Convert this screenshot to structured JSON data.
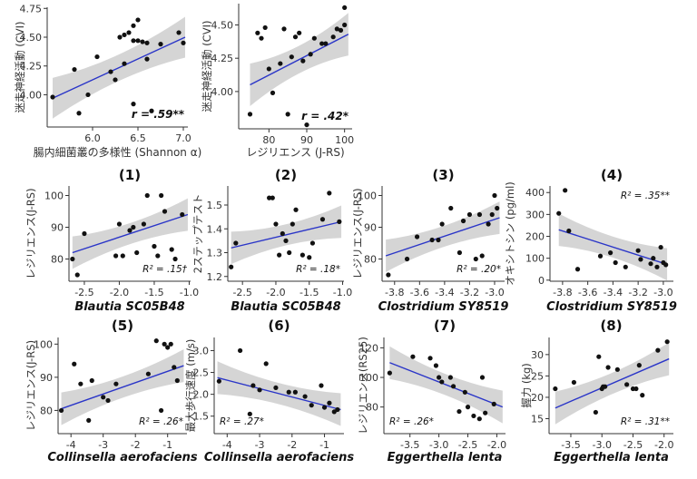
{
  "chart_data": [
    {
      "id": "A",
      "type": "scatter",
      "title": "",
      "xlabel": "腸内細菌叢の多様性 (Shannon α)",
      "xlabel_style": "plain",
      "ylabel": "迷走神経活動 (CVI)",
      "xlim": [
        5.5,
        7.05
      ],
      "ylim": [
        3.72,
        4.76
      ],
      "xticks": [
        6.0,
        6.5,
        7.0
      ],
      "xtick_labels": [
        "6.0",
        "6.5",
        "7.0"
      ],
      "yticks": [
        4.0,
        4.25,
        4.5,
        4.75
      ],
      "ytick_labels": [
        "4.00",
        "4.25",
        "4.50",
        "4.75"
      ],
      "stat": "r = .59**",
      "stat_pos": "bottom-right",
      "grid": false,
      "fit": {
        "x1": 5.56,
        "y1": 3.97,
        "x2": 7.02,
        "y2": 4.5
      },
      "x": [
        5.56,
        5.8,
        5.85,
        5.95,
        6.05,
        6.2,
        6.25,
        6.3,
        6.35,
        6.35,
        6.4,
        6.45,
        6.45,
        6.5,
        6.5,
        6.55,
        6.6,
        6.6,
        6.65,
        6.75,
        6.95,
        7.0,
        6.45
      ],
      "y": [
        3.98,
        4.22,
        3.84,
        4.0,
        4.33,
        4.2,
        4.13,
        4.5,
        4.52,
        4.27,
        4.54,
        4.47,
        4.6,
        4.47,
        4.65,
        4.46,
        4.45,
        4.31,
        3.86,
        4.44,
        4.54,
        4.45,
        3.92
      ]
    },
    {
      "id": "B",
      "type": "scatter",
      "title": "",
      "xlabel": "レジリエンス (J-RS)",
      "xlabel_style": "plain",
      "ylabel": "迷走神経活動 (CVI)",
      "xlim": [
        72,
        102
      ],
      "ylim": [
        3.72,
        4.66
      ],
      "xticks": [
        80,
        90,
        100
      ],
      "xtick_labels": [
        "80",
        "90",
        "100"
      ],
      "yticks": [
        4.0,
        4.25,
        4.5
      ],
      "ytick_labels": [
        "4.00",
        "4.25",
        "4.50"
      ],
      "stat": "r = .42*",
      "stat_pos": "bottom-right",
      "grid": false,
      "fit": {
        "x1": 75,
        "y1": 4.05,
        "x2": 101,
        "y2": 4.43
      },
      "x": [
        75,
        77,
        78,
        79,
        80,
        81,
        83,
        84,
        85,
        86,
        87,
        88,
        89,
        90,
        91,
        92,
        94,
        95,
        97,
        98,
        99,
        100,
        100
      ],
      "y": [
        3.83,
        4.44,
        4.4,
        4.48,
        4.17,
        3.99,
        4.21,
        4.47,
        3.83,
        4.26,
        4.41,
        4.44,
        4.23,
        3.75,
        4.28,
        4.4,
        4.36,
        4.36,
        4.41,
        4.47,
        4.46,
        4.5,
        4.63
      ]
    },
    {
      "id": "1",
      "type": "scatter",
      "title": "(1)",
      "xlabel": "Blautia SC05B48",
      "xlabel_style": "italic",
      "ylabel": "レジリエンス(J-RS)",
      "xlim": [
        -2.72,
        -0.98
      ],
      "ylim": [
        73,
        103
      ],
      "xticks": [
        -2.5,
        -2.0,
        -1.5,
        -1.0
      ],
      "xtick_labels": [
        "-2.5",
        "-2.0",
        "-1.5",
        "-1.0"
      ],
      "yticks": [
        80,
        90,
        100
      ],
      "ytick_labels": [
        "80",
        "90",
        "100"
      ],
      "stat": "R² = .15†",
      "stat_pos": "bottom-right",
      "grid": false,
      "fit": {
        "x1": -2.67,
        "y1": 82,
        "x2": -1.02,
        "y2": 94
      },
      "x": [
        -2.67,
        -2.6,
        -2.5,
        -2.05,
        -2.0,
        -1.95,
        -1.85,
        -1.8,
        -1.75,
        -1.65,
        -1.6,
        -1.5,
        -1.45,
        -1.4,
        -1.35,
        -1.25,
        -1.2,
        -1.1
      ],
      "y": [
        80,
        75,
        88,
        81,
        91,
        81,
        89,
        90,
        82,
        91,
        100,
        84,
        81,
        100,
        95,
        83,
        80,
        94
      ]
    },
    {
      "id": "2",
      "type": "scatter",
      "title": "(2)",
      "xlabel": "Blautia SC05B48",
      "xlabel_style": "italic",
      "ylabel": "2ステップテスト",
      "xlim": [
        -2.72,
        -0.98
      ],
      "ylim": [
        1.18,
        1.58
      ],
      "xticks": [
        -2.5,
        -2.0,
        -1.5,
        -1.0
      ],
      "xtick_labels": [
        "-2.5",
        "-2.0",
        "-1.5",
        "-1.0"
      ],
      "yticks": [
        1.2,
        1.3,
        1.4,
        1.5
      ],
      "ytick_labels": [
        "1.2",
        "1.3",
        "1.4",
        "1.5"
      ],
      "stat": "R² = .18*",
      "stat_pos": "bottom-right",
      "grid": false,
      "fit": {
        "x1": -2.67,
        "y1": 1.32,
        "x2": -1.02,
        "y2": 1.43
      },
      "x": [
        -2.67,
        -2.6,
        -2.1,
        -2.05,
        -2.0,
        -1.95,
        -1.9,
        -1.85,
        -1.8,
        -1.75,
        -1.7,
        -1.6,
        -1.5,
        -1.45,
        -1.3,
        -1.2,
        -1.05
      ],
      "y": [
        1.24,
        1.34,
        1.53,
        1.53,
        1.42,
        1.29,
        1.38,
        1.35,
        1.3,
        1.42,
        1.48,
        1.29,
        1.28,
        1.34,
        1.44,
        1.55,
        1.43
      ]
    },
    {
      "id": "3",
      "type": "scatter",
      "title": "(3)",
      "xlabel": "Clostridium SY8519",
      "xlabel_style": "italic",
      "ylabel": "レジリエンス(J-RS)",
      "xlim": [
        -3.9,
        -2.92
      ],
      "ylim": [
        73,
        103
      ],
      "xticks": [
        -3.8,
        -3.6,
        -3.4,
        -3.2,
        -3.0
      ],
      "xtick_labels": [
        "-3.8",
        "-3.6",
        "-3.4",
        "-3.2",
        "-3.0"
      ],
      "yticks": [
        80,
        90,
        100
      ],
      "ytick_labels": [
        "80",
        "90",
        "100"
      ],
      "stat": "R² = .20*",
      "stat_pos": "bottom-right",
      "grid": false,
      "fit": {
        "x1": -3.87,
        "y1": 81,
        "x2": -2.96,
        "y2": 93
      },
      "x": [
        -3.85,
        -3.7,
        -3.62,
        -3.5,
        -3.45,
        -3.42,
        -3.35,
        -3.28,
        -3.25,
        -3.2,
        -3.15,
        -3.12,
        -3.1,
        -3.05,
        -3.02,
        -3.0,
        -2.98
      ],
      "y": [
        75,
        80,
        87,
        86,
        86,
        91,
        96,
        82,
        92,
        94,
        80,
        94,
        81,
        91,
        94,
        100,
        96
      ]
    },
    {
      "id": "4",
      "type": "scatter",
      "title": "(4)",
      "xlabel": "Clostridium SY8519",
      "xlabel_style": "italic",
      "ylabel": "オキシトシン (pg/ml)",
      "xlim": [
        -3.9,
        -2.92
      ],
      "ylim": [
        -5,
        430
      ],
      "xticks": [
        -3.8,
        -3.6,
        -3.4,
        -3.2,
        -3.0
      ],
      "xtick_labels": [
        "-3.8",
        "-3.6",
        "-3.4",
        "-3.2",
        "-3.0"
      ],
      "yticks": [
        0,
        100,
        200,
        300,
        400
      ],
      "ytick_labels": [
        "0",
        "100",
        "200",
        "300",
        "400"
      ],
      "stat": "R² = .35**",
      "stat_pos": "top-right",
      "grid": false,
      "fit": {
        "x1": -3.83,
        "y1": 230,
        "x2": -2.97,
        "y2": 72
      },
      "x": [
        -3.83,
        -3.78,
        -3.75,
        -3.68,
        -3.5,
        -3.42,
        -3.38,
        -3.3,
        -3.2,
        -3.18,
        -3.1,
        -3.08,
        -3.05,
        -3.02,
        -3.0,
        -2.98
      ],
      "y": [
        305,
        410,
        225,
        50,
        110,
        125,
        80,
        60,
        135,
        95,
        75,
        100,
        60,
        150,
        80,
        70
      ]
    },
    {
      "id": "5",
      "type": "scatter",
      "title": "(5)",
      "xlabel": "Collinsella aerofaciens",
      "xlabel_style": "italic",
      "ylabel": "レジリエンス(J-RS)",
      "xlim": [
        -4.4,
        -0.4
      ],
      "ylim": [
        73,
        102
      ],
      "xticks": [
        -4,
        -3,
        -2,
        -1
      ],
      "xtick_labels": [
        "-4",
        "-3",
        "-2",
        "-1"
      ],
      "yticks": [
        80,
        90,
        100
      ],
      "ytick_labels": [
        "80",
        "90",
        "100"
      ],
      "stat": "R² = .26*",
      "stat_pos": "bottom-right",
      "grid": false,
      "fit": {
        "x1": -4.3,
        "y1": 80.5,
        "x2": -0.5,
        "y2": 93.5
      },
      "x": [
        -4.3,
        -3.9,
        -3.7,
        -3.45,
        -3.35,
        -3.0,
        -2.85,
        -2.6,
        -1.6,
        -1.35,
        -1.2,
        -1.1,
        -1.0,
        -0.9,
        -0.8,
        -0.7
      ],
      "y": [
        80,
        94,
        88,
        77,
        89,
        84,
        83,
        88,
        91,
        101,
        80,
        100,
        99,
        100,
        93,
        89
      ]
    },
    {
      "id": "6",
      "type": "scatter",
      "title": "(6)",
      "xlabel": "Collinsella aerofaciens",
      "xlabel_style": "italic",
      "ylabel": "最大歩行速度 (m/s)",
      "xlim": [
        -4.4,
        -0.4
      ],
      "ylim": [
        1.1,
        3.3
      ],
      "xticks": [
        -4,
        -3,
        -2,
        -1
      ],
      "xtick_labels": [
        "-4",
        "-3",
        "-2",
        "-1"
      ],
      "yticks": [
        1.5,
        2.0,
        2.5,
        3.0
      ],
      "ytick_labels": [
        "1.5",
        "2.0",
        "2.5",
        "3.0"
      ],
      "stat": "R² = .27*",
      "stat_pos": "bottom-left",
      "grid": false,
      "fit": {
        "x1": -4.3,
        "y1": 2.38,
        "x2": -0.5,
        "y2": 1.65
      },
      "x": [
        -4.25,
        -3.6,
        -3.3,
        -3.2,
        -3.0,
        -2.8,
        -2.5,
        -2.1,
        -1.9,
        -1.6,
        -1.4,
        -1.1,
        -1.0,
        -0.85,
        -0.7,
        -0.6
      ],
      "y": [
        2.3,
        3.0,
        1.55,
        2.2,
        2.1,
        2.7,
        2.15,
        2.05,
        2.05,
        1.95,
        1.75,
        2.2,
        1.7,
        1.8,
        1.6,
        1.65
      ]
    },
    {
      "id": "7",
      "type": "scatter",
      "title": "(7)",
      "xlabel": "Eggerthella lenta",
      "xlabel_style": "italic",
      "ylabel": "レジリエンス(RS25)",
      "xlim": [
        -3.95,
        -1.85
      ],
      "ylim": [
        62,
        127
      ],
      "xticks": [
        -3.5,
        -3.0,
        -2.5,
        -2.0
      ],
      "xtick_labels": [
        "-3.5",
        "-3.0",
        "-2.5",
        "-2.0"
      ],
      "yticks": [
        80,
        100,
        120
      ],
      "ytick_labels": [
        "80",
        "100",
        "120"
      ],
      "stat": "R² = .26*",
      "stat_pos": "bottom-left",
      "grid": false,
      "fit": {
        "x1": -3.85,
        "y1": 110,
        "x2": -1.9,
        "y2": 80
      },
      "x": [
        -3.85,
        -3.45,
        -3.15,
        -3.05,
        -3.0,
        -2.95,
        -2.8,
        -2.75,
        -2.65,
        -2.55,
        -2.5,
        -2.4,
        -2.3,
        -2.25,
        -2.2,
        -2.05
      ],
      "y": [
        103,
        114,
        113,
        108,
        100,
        97,
        100,
        94,
        77,
        90,
        80,
        74,
        72,
        100,
        76,
        82
      ]
    },
    {
      "id": "8",
      "type": "scatter",
      "title": "(8)",
      "xlabel": "Eggerthella lenta",
      "xlabel_style": "italic",
      "ylabel": "握力 (kg)",
      "xlim": [
        -3.85,
        -1.85
      ],
      "ylim": [
        11.5,
        34
      ],
      "xticks": [
        -3.5,
        -3.0,
        -2.5,
        -2.0
      ],
      "xtick_labels": [
        "-3.5",
        "-3.0",
        "-2.5",
        "-2.0"
      ],
      "yticks": [
        15,
        20,
        25,
        30
      ],
      "ytick_labels": [
        "15",
        "20",
        "25",
        "30"
      ],
      "stat": "R² = .31**",
      "stat_pos": "bottom-right",
      "grid": false,
      "fit": {
        "x1": -3.75,
        "y1": 17.5,
        "x2": -1.92,
        "y2": 29
      },
      "x": [
        -3.75,
        -3.45,
        -3.1,
        -3.05,
        -3.0,
        -2.98,
        -2.95,
        -2.9,
        -2.75,
        -2.6,
        -2.5,
        -2.45,
        -2.4,
        -2.35,
        -2.1,
        -1.95
      ],
      "y": [
        22,
        23.5,
        16.5,
        29.5,
        22,
        22.5,
        22.5,
        27,
        26.5,
        23,
        22,
        22,
        27.5,
        20.5,
        31,
        33
      ]
    }
  ]
}
